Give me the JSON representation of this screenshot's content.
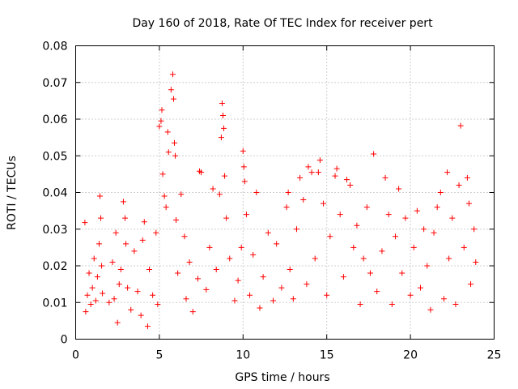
{
  "chart_data": {
    "type": "scatter",
    "title": "Day 160 of 2018, Rate Of TEC Index for receiver pert",
    "xlabel": "GPS time / hours",
    "ylabel": "ROTI / TECUs",
    "xlim": [
      0,
      25
    ],
    "ylim": [
      0,
      0.08
    ],
    "x_ticks": [
      "0",
      "5",
      "10",
      "15",
      "20",
      "25"
    ],
    "y_ticks": [
      "0",
      "0.01",
      "0.02",
      "0.03",
      "0.04",
      "0.05",
      "0.06",
      "0.07",
      "0.08"
    ],
    "grid": true,
    "marker": "plus",
    "color": "#ff0000",
    "series": [
      {
        "values": [
          [
            0.55,
            0.0318
          ],
          [
            0.6,
            0.0075
          ],
          [
            0.7,
            0.012
          ],
          [
            0.8,
            0.018
          ],
          [
            0.9,
            0.0095
          ],
          [
            1.0,
            0.014
          ],
          [
            1.1,
            0.022
          ],
          [
            1.2,
            0.0105
          ],
          [
            1.3,
            0.017
          ],
          [
            1.4,
            0.026
          ],
          [
            1.45,
            0.039
          ],
          [
            1.5,
            0.033
          ],
          [
            1.55,
            0.02
          ],
          [
            1.6,
            0.0125
          ],
          [
            2.0,
            0.01
          ],
          [
            2.2,
            0.021
          ],
          [
            2.3,
            0.011
          ],
          [
            2.4,
            0.029
          ],
          [
            2.5,
            0.0045
          ],
          [
            2.6,
            0.015
          ],
          [
            2.7,
            0.019
          ],
          [
            2.85,
            0.0375
          ],
          [
            2.95,
            0.033
          ],
          [
            3.0,
            0.026
          ],
          [
            3.1,
            0.014
          ],
          [
            3.3,
            0.008
          ],
          [
            3.5,
            0.024
          ],
          [
            3.7,
            0.013
          ],
          [
            3.9,
            0.0065
          ],
          [
            4.0,
            0.027
          ],
          [
            4.1,
            0.032
          ],
          [
            4.3,
            0.0035
          ],
          [
            4.4,
            0.019
          ],
          [
            4.6,
            0.012
          ],
          [
            4.8,
            0.029
          ],
          [
            4.9,
            0.0095
          ],
          [
            5.0,
            0.058
          ],
          [
            5.1,
            0.0595
          ],
          [
            5.15,
            0.0625
          ],
          [
            5.2,
            0.045
          ],
          [
            5.3,
            0.039
          ],
          [
            5.4,
            0.036
          ],
          [
            5.5,
            0.0565
          ],
          [
            5.55,
            0.051
          ],
          [
            5.7,
            0.068
          ],
          [
            5.8,
            0.0722
          ],
          [
            5.85,
            0.0655
          ],
          [
            5.9,
            0.0535
          ],
          [
            5.95,
            0.05
          ],
          [
            6.0,
            0.0325
          ],
          [
            6.1,
            0.018
          ],
          [
            6.3,
            0.0395
          ],
          [
            6.5,
            0.028
          ],
          [
            6.6,
            0.011
          ],
          [
            6.8,
            0.021
          ],
          [
            7.0,
            0.0075
          ],
          [
            7.3,
            0.0165
          ],
          [
            7.4,
            0.0458
          ],
          [
            7.5,
            0.0455
          ],
          [
            7.8,
            0.0135
          ],
          [
            8.0,
            0.025
          ],
          [
            8.2,
            0.041
          ],
          [
            8.4,
            0.019
          ],
          [
            8.6,
            0.0395
          ],
          [
            8.7,
            0.055
          ],
          [
            8.75,
            0.0643
          ],
          [
            8.8,
            0.061
          ],
          [
            8.85,
            0.0575
          ],
          [
            8.9,
            0.0445
          ],
          [
            9.0,
            0.033
          ],
          [
            9.2,
            0.022
          ],
          [
            9.5,
            0.0105
          ],
          [
            9.7,
            0.016
          ],
          [
            9.9,
            0.025
          ],
          [
            10.0,
            0.0513
          ],
          [
            10.05,
            0.047
          ],
          [
            10.1,
            0.043
          ],
          [
            10.2,
            0.034
          ],
          [
            10.4,
            0.012
          ],
          [
            10.6,
            0.023
          ],
          [
            10.8,
            0.04
          ],
          [
            11.0,
            0.0085
          ],
          [
            11.2,
            0.017
          ],
          [
            11.5,
            0.029
          ],
          [
            11.8,
            0.0105
          ],
          [
            12.0,
            0.026
          ],
          [
            12.3,
            0.014
          ],
          [
            12.6,
            0.036
          ],
          [
            12.7,
            0.04
          ],
          [
            12.8,
            0.019
          ],
          [
            13.0,
            0.011
          ],
          [
            13.2,
            0.03
          ],
          [
            13.4,
            0.044
          ],
          [
            13.6,
            0.038
          ],
          [
            13.8,
            0.015
          ],
          [
            13.9,
            0.047
          ],
          [
            14.1,
            0.0455
          ],
          [
            14.3,
            0.022
          ],
          [
            14.5,
            0.0455
          ],
          [
            14.6,
            0.0488
          ],
          [
            14.8,
            0.037
          ],
          [
            15.0,
            0.012
          ],
          [
            15.2,
            0.028
          ],
          [
            15.5,
            0.0445
          ],
          [
            15.6,
            0.0465
          ],
          [
            15.8,
            0.034
          ],
          [
            16.0,
            0.017
          ],
          [
            16.2,
            0.0435
          ],
          [
            16.4,
            0.042
          ],
          [
            16.6,
            0.025
          ],
          [
            16.8,
            0.031
          ],
          [
            17.0,
            0.0095
          ],
          [
            17.2,
            0.022
          ],
          [
            17.4,
            0.036
          ],
          [
            17.6,
            0.018
          ],
          [
            17.8,
            0.0505
          ],
          [
            18.0,
            0.013
          ],
          [
            18.3,
            0.024
          ],
          [
            18.5,
            0.044
          ],
          [
            18.7,
            0.034
          ],
          [
            18.9,
            0.0095
          ],
          [
            19.1,
            0.028
          ],
          [
            19.3,
            0.041
          ],
          [
            19.5,
            0.018
          ],
          [
            19.7,
            0.033
          ],
          [
            20.0,
            0.012
          ],
          [
            20.2,
            0.025
          ],
          [
            20.4,
            0.035
          ],
          [
            20.6,
            0.014
          ],
          [
            20.8,
            0.03
          ],
          [
            21.0,
            0.02
          ],
          [
            21.2,
            0.008
          ],
          [
            21.4,
            0.029
          ],
          [
            21.6,
            0.036
          ],
          [
            21.8,
            0.04
          ],
          [
            22.0,
            0.011
          ],
          [
            22.2,
            0.0455
          ],
          [
            22.3,
            0.022
          ],
          [
            22.5,
            0.033
          ],
          [
            22.7,
            0.0095
          ],
          [
            22.9,
            0.042
          ],
          [
            23.0,
            0.0582
          ],
          [
            23.2,
            0.025
          ],
          [
            23.4,
            0.044
          ],
          [
            23.5,
            0.037
          ],
          [
            23.6,
            0.015
          ],
          [
            23.8,
            0.03
          ],
          [
            23.9,
            0.021
          ]
        ]
      }
    ]
  }
}
